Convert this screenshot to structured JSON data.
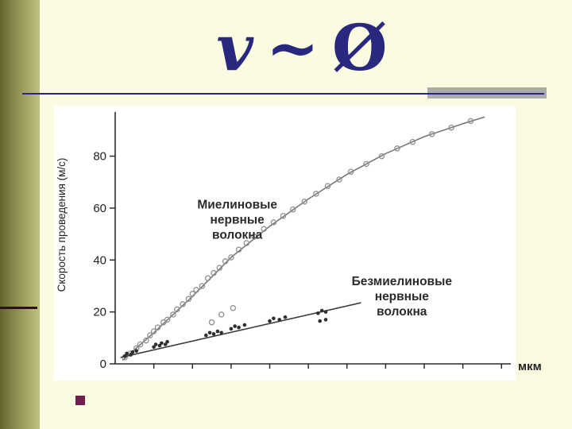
{
  "slide": {
    "title": {
      "v": "v",
      "tilde": "~",
      "phi": "Ø"
    },
    "colors": {
      "background": "#FBFBE2",
      "title": "#28287E",
      "divider": "#28287E",
      "gray_bar": "#ABABAB",
      "bullet": "#6E2150",
      "axis": "#2B2B2B",
      "chart_bg": "#FFFFFF"
    }
  },
  "chart_data": {
    "type": "scatter",
    "title": "",
    "xlabel": "мкм",
    "ylabel": "Скорость проведения (м/с)",
    "xlim": [
      0,
      10.2
    ],
    "ylim": [
      0,
      97
    ],
    "yticks": [
      0,
      20,
      40,
      60,
      80
    ],
    "xticks_every": 1,
    "xticks_count": 10,
    "grid": false,
    "legend": "inline-annotations",
    "series": [
      {
        "name": "Миелиновые нервные волокна",
        "label_lines": [
          "Миелиновые",
          "нервные",
          "волокна"
        ],
        "label_pos": [
          3.16,
          54
        ],
        "marker": "open-circle",
        "marker_color": "#8F8F8F",
        "line_color": "#787878",
        "trend": [
          [
            0.2,
            1.5
          ],
          [
            1.0,
            12
          ],
          [
            2.0,
            26
          ],
          [
            3.0,
            41
          ],
          [
            4.0,
            53
          ],
          [
            5.0,
            63.5
          ],
          [
            6.0,
            73
          ],
          [
            7.0,
            81
          ],
          [
            8.0,
            87.5
          ],
          [
            9.0,
            92.5
          ],
          [
            9.55,
            95
          ]
        ],
        "points": [
          [
            0.25,
            2.5
          ],
          [
            0.4,
            4
          ],
          [
            0.55,
            6
          ],
          [
            0.65,
            7.5
          ],
          [
            0.8,
            9
          ],
          [
            0.9,
            11
          ],
          [
            1.0,
            12.5
          ],
          [
            1.1,
            14
          ],
          [
            1.25,
            16
          ],
          [
            1.35,
            17
          ],
          [
            1.5,
            19
          ],
          [
            1.6,
            21
          ],
          [
            1.75,
            23
          ],
          [
            1.9,
            25
          ],
          [
            2.0,
            27
          ],
          [
            2.1,
            28.5
          ],
          [
            2.25,
            30
          ],
          [
            2.4,
            33
          ],
          [
            2.55,
            35
          ],
          [
            2.7,
            37
          ],
          [
            2.85,
            39.5
          ],
          [
            3.0,
            41
          ],
          [
            3.2,
            44
          ],
          [
            3.4,
            46.5
          ],
          [
            3.6,
            49
          ],
          [
            3.85,
            52
          ],
          [
            4.1,
            54.5
          ],
          [
            4.35,
            57
          ],
          [
            4.6,
            59.5
          ],
          [
            4.9,
            62.5
          ],
          [
            5.2,
            65.5
          ],
          [
            5.5,
            68.5
          ],
          [
            5.8,
            71
          ],
          [
            6.1,
            74
          ],
          [
            6.5,
            77
          ],
          [
            6.9,
            80
          ],
          [
            7.3,
            83
          ],
          [
            7.7,
            85.5
          ],
          [
            8.2,
            88.5
          ],
          [
            8.7,
            91
          ],
          [
            9.2,
            93.5
          ],
          [
            2.5,
            16
          ],
          [
            2.75,
            19
          ],
          [
            3.05,
            21.5
          ]
        ]
      },
      {
        "name": "Безмиелиновые нервные волокна",
        "label_lines": [
          "Безмиелиновые",
          "нервные",
          "волокна"
        ],
        "label_pos": [
          7.42,
          24.5
        ],
        "marker": "filled-circle",
        "marker_color": "#2F2F2F",
        "line_color": "#3D3D3D",
        "trend": [
          [
            0.15,
            2.5
          ],
          [
            6.35,
            23.5
          ]
        ],
        "points": [
          [
            0.25,
            3
          ],
          [
            0.3,
            4
          ],
          [
            0.4,
            3.5
          ],
          [
            0.45,
            4.5
          ],
          [
            0.55,
            5
          ],
          [
            1.0,
            6.5
          ],
          [
            1.05,
            7.5
          ],
          [
            1.15,
            7
          ],
          [
            1.2,
            8
          ],
          [
            1.3,
            7.5
          ],
          [
            1.35,
            8.5
          ],
          [
            2.35,
            11
          ],
          [
            2.45,
            12
          ],
          [
            2.55,
            11.5
          ],
          [
            2.65,
            12.5
          ],
          [
            2.75,
            12
          ],
          [
            3.0,
            13.5
          ],
          [
            3.1,
            14.5
          ],
          [
            3.2,
            14
          ],
          [
            3.35,
            15
          ],
          [
            4.0,
            16.5
          ],
          [
            4.1,
            17.5
          ],
          [
            4.25,
            17
          ],
          [
            4.4,
            18
          ],
          [
            5.25,
            19.5
          ],
          [
            5.35,
            20.5
          ],
          [
            5.45,
            20
          ],
          [
            5.3,
            16.5
          ],
          [
            5.45,
            17
          ]
        ]
      }
    ]
  }
}
